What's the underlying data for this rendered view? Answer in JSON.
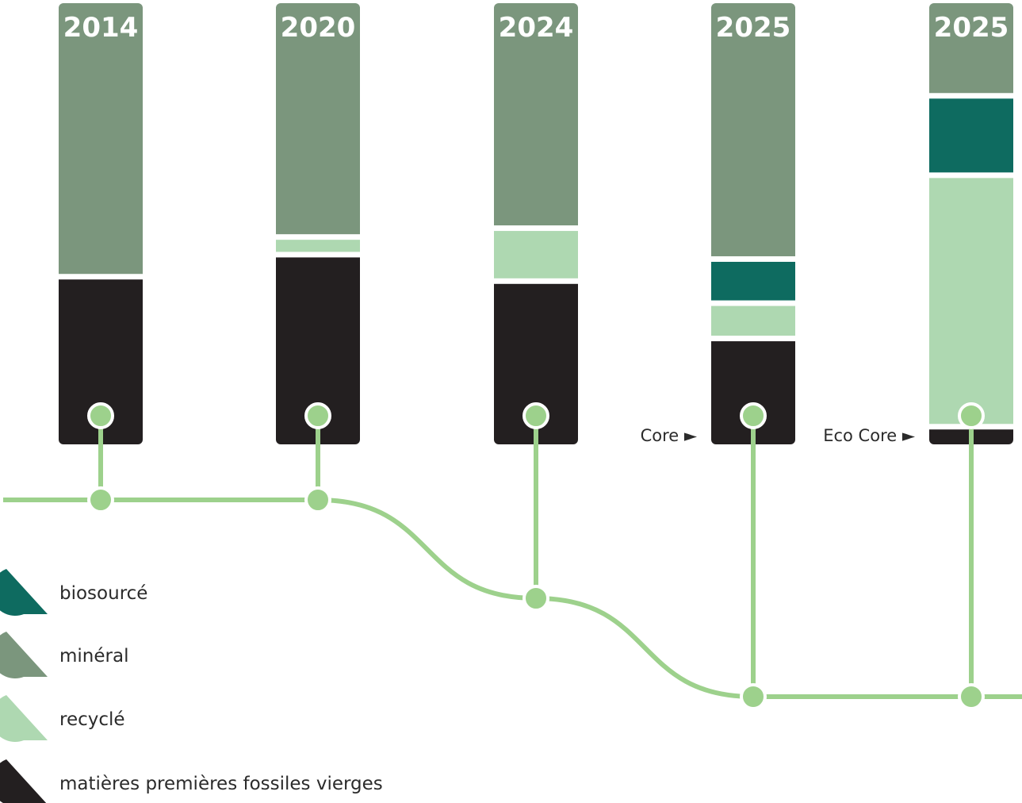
{
  "chart_data": {
    "type": "stacked-bar",
    "stack_order_bottom_to_top": [
      "fossile",
      "recycle",
      "biosource",
      "mineral"
    ],
    "categories": [
      {
        "year": "2014",
        "variant": "",
        "values": {
          "fossile": 38,
          "recycle": 0,
          "biosource": 0,
          "mineral": 62
        }
      },
      {
        "year": "2020",
        "variant": "",
        "values": {
          "fossile": 43,
          "recycle": 4,
          "biosource": 0,
          "mineral": 53
        }
      },
      {
        "year": "2024",
        "variant": "",
        "values": {
          "fossile": 37,
          "recycle": 12,
          "biosource": 0,
          "mineral": 51
        }
      },
      {
        "year": "2025",
        "variant": "Core ►",
        "values": {
          "fossile": 24,
          "recycle": 8,
          "biosource": 10,
          "mineral": 58
        }
      },
      {
        "year": "2025",
        "variant": "Eco Core ►",
        "values": {
          "fossile": 4,
          "recycle": 57,
          "biosource": 18,
          "mineral": 21
        }
      }
    ],
    "timeline_levels": [
      1,
      1,
      0.5,
      0,
      0
    ],
    "series": [
      {
        "key": "biosource",
        "name": "biosourcé",
        "color": "#0e6b60"
      },
      {
        "key": "mineral",
        "name": "minéral",
        "color": "#7b967d"
      },
      {
        "key": "recycle",
        "name": "recyclé",
        "color": "#aed8b1"
      },
      {
        "key": "fossile",
        "name": "matières premières fossiles vierges",
        "color": "#231f20"
      }
    ],
    "timeline_color": "#9dd18c",
    "legend_position": "bottom-left"
  }
}
